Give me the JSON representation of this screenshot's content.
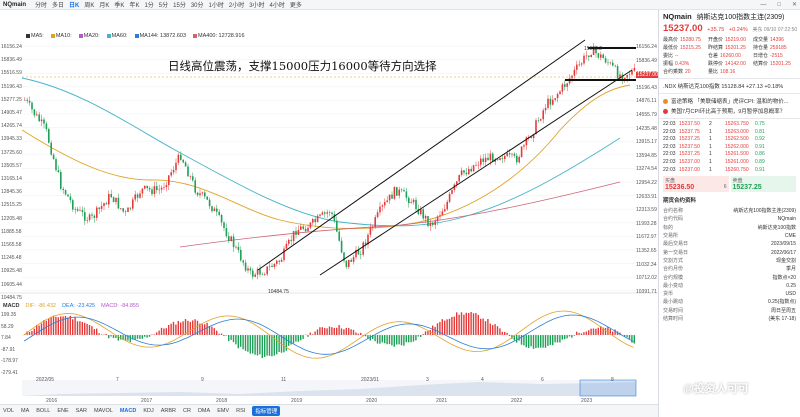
{
  "topbar": {
    "symbol": "NQmain",
    "periods": [
      "分时",
      "多日",
      "日K",
      "周K",
      "月K",
      "季K",
      "年K",
      "1分",
      "5分",
      "15分",
      "30分",
      "1小时",
      "2小时",
      "3小时",
      "4小时",
      "更多"
    ],
    "active_period": "日K"
  },
  "legend": {
    "ma5": "MA5:",
    "ma10": "MA10:",
    "ma20": "MA20:",
    "ma60": "MA60:",
    "ma144": "MA144: 13872.603",
    "ma_extra": "MA400: 12728.916",
    "colors": {
      "ma5": "#333333",
      "ma10": "#e0a326",
      "ma20": "#b659c9",
      "ma60": "#46b4c8",
      "ma144": "#2a7ed8",
      "ma_extra": "#cc6677"
    }
  },
  "price_axis": [
    "16156.24",
    "15836.49",
    "15516.59",
    "15196.43",
    "14876.11",
    "14555.79",
    "14235.48",
    "13915.17",
    "13594.85",
    "13274.54",
    "12954.22",
    "12633.91",
    "12313.59",
    "11993.28",
    "11672.97",
    "11352.65",
    "11032.34",
    "10712.02",
    "10391.71"
  ],
  "left_axis_labels": [
    "16156.24",
    "15836.49",
    "15516.59",
    "15196.43",
    "15277.25",
    "14905.47",
    "14265.74",
    "13945.33",
    "13725.60",
    "13505.57",
    "13165.14",
    "12845.36",
    "12515.25",
    "12205.48",
    "11885.58",
    "11565.58",
    "11245.48",
    "10925.48",
    "10605.44",
    "10484.75"
  ],
  "current_price_tag": "15237.00",
  "annotation": "日线高位震荡，支撑15000压力16000等待方向选择",
  "low_label": "10484.75",
  "high_label": "15932.2",
  "macd": {
    "name": "MACD",
    "dif": "DIF: -86.432",
    "dea": "DEA: -23.425",
    "macd": "MACD: -84.855",
    "axis": [
      "199.35",
      "58.29",
      "7.84",
      "-87.91",
      "-178.97",
      "-279.41"
    ],
    "colors": {
      "dif": "#e0a326",
      "dea": "#2a7ed8",
      "hist_pos": "#e43a3a",
      "hist_neg": "#1ea056"
    }
  },
  "date_axis": [
    "2022/05",
    "7",
    "9",
    "11",
    "2023/01",
    "3",
    "4",
    "6",
    "8"
  ],
  "year_axis": [
    "2016",
    "2017",
    "2018",
    "2019",
    "2020",
    "2021",
    "2022",
    "2023"
  ],
  "bottombar": {
    "tabs": [
      "VOL",
      "MA",
      "BOLL",
      "ENE",
      "SAR",
      "MAVOL",
      "MACD",
      "KDJ",
      "ARBR",
      "CR",
      "DMA",
      "EMV",
      "RSI",
      "指标管理"
    ],
    "active": "MACD"
  },
  "panel": {
    "code": "NQmain",
    "name": "纳斯达克100指数主连(2309)",
    "price": "15237.00",
    "change": "+35.75",
    "pct": "+0.24%",
    "time": "美东 09/10 07:22:50",
    "stats": [
      {
        "k": "最高价",
        "v": "15280.75"
      },
      {
        "k": "开盘价",
        "v": "15219.00"
      },
      {
        "k": "成交量",
        "v": "14396"
      },
      {
        "k": "最低价",
        "v": "15215.25"
      },
      {
        "k": "昨结算",
        "v": "15201.25"
      },
      {
        "k": "持仓量",
        "v": "259185"
      },
      {
        "k": "委比",
        "v": "--"
      },
      {
        "k": "仓差",
        "v": "16260.00"
      },
      {
        "k": "日增仓",
        "v": "-2515"
      },
      {
        "k": "振幅",
        "v": "0.43%"
      },
      {
        "k": "跌停价",
        "v": "14142.00"
      },
      {
        "k": "结算价",
        "v": "15201.25"
      },
      {
        "k": "合约乘数",
        "v": "20"
      },
      {
        "k": "量比",
        "v": "108.16"
      },
      {
        "k": "",
        "v": ""
      }
    ],
    "related": ".NDX 纳斯达克100指数  15128.84  +27.13  +0.18%",
    "news": [
      "富途策略 「美联储缩表」虎评CPI: 温和的物价...",
      "美国7月CPI环比高于预期，9月暂停加息概率？"
    ],
    "ticks": [
      {
        "t": "22:03",
        "p": "15237.50",
        "v": "2",
        "p2": "15263.750",
        "v2": "0.75"
      },
      {
        "t": "22:03",
        "p": "15237.75",
        "v": "1",
        "p2": "15263.000",
        "v2": "0.81"
      },
      {
        "t": "22:03",
        "p": "15237.25",
        "v": "1",
        "p2": "15262.500",
        "v2": "0.92"
      },
      {
        "t": "22:03",
        "p": "15237.50",
        "v": "1",
        "p2": "15262.000",
        "v2": "0.91"
      },
      {
        "t": "22:03",
        "p": "15237.25",
        "v": "1",
        "p2": "15261.500",
        "v2": "0.86"
      },
      {
        "t": "22:03",
        "p": "15237.00",
        "v": "1",
        "p2": "15261.000",
        "v2": "0.89"
      },
      {
        "t": "22:03",
        "p": "15237.00",
        "v": "1",
        "p2": "15260.750",
        "v2": "0.91"
      }
    ],
    "bid_label": "买盘",
    "ask_label": "卖盘",
    "bid": "15236.50",
    "bid_size": "6",
    "ask": "15237.25",
    "info_title": "期货合约资料",
    "info": [
      {
        "k": "合约名称",
        "v": "纳斯达克100指数主连(2309)"
      },
      {
        "k": "合约代码",
        "v": "NQmain"
      },
      {
        "k": "标的",
        "v": "纳斯达克100指数"
      },
      {
        "k": "交易所",
        "v": "CME"
      },
      {
        "k": "最后交易日",
        "v": "2023/09/15"
      },
      {
        "k": "第一交易日",
        "v": "2022/06/17"
      },
      {
        "k": "交割方式",
        "v": "现金交割"
      },
      {
        "k": "合约月份",
        "v": "季月"
      },
      {
        "k": "合约规模",
        "v": "指数点×20"
      },
      {
        "k": "最小变动",
        "v": "0.25"
      },
      {
        "k": "货币",
        "v": "USD"
      },
      {
        "k": "最小跳动",
        "v": "0.25(指数点)"
      },
      {
        "k": "交易时间",
        "v": "周日至周五"
      },
      {
        "k": "结算时间",
        "v": "(美东 17-18)"
      }
    ]
  },
  "watermark": "@投资人可可"
}
